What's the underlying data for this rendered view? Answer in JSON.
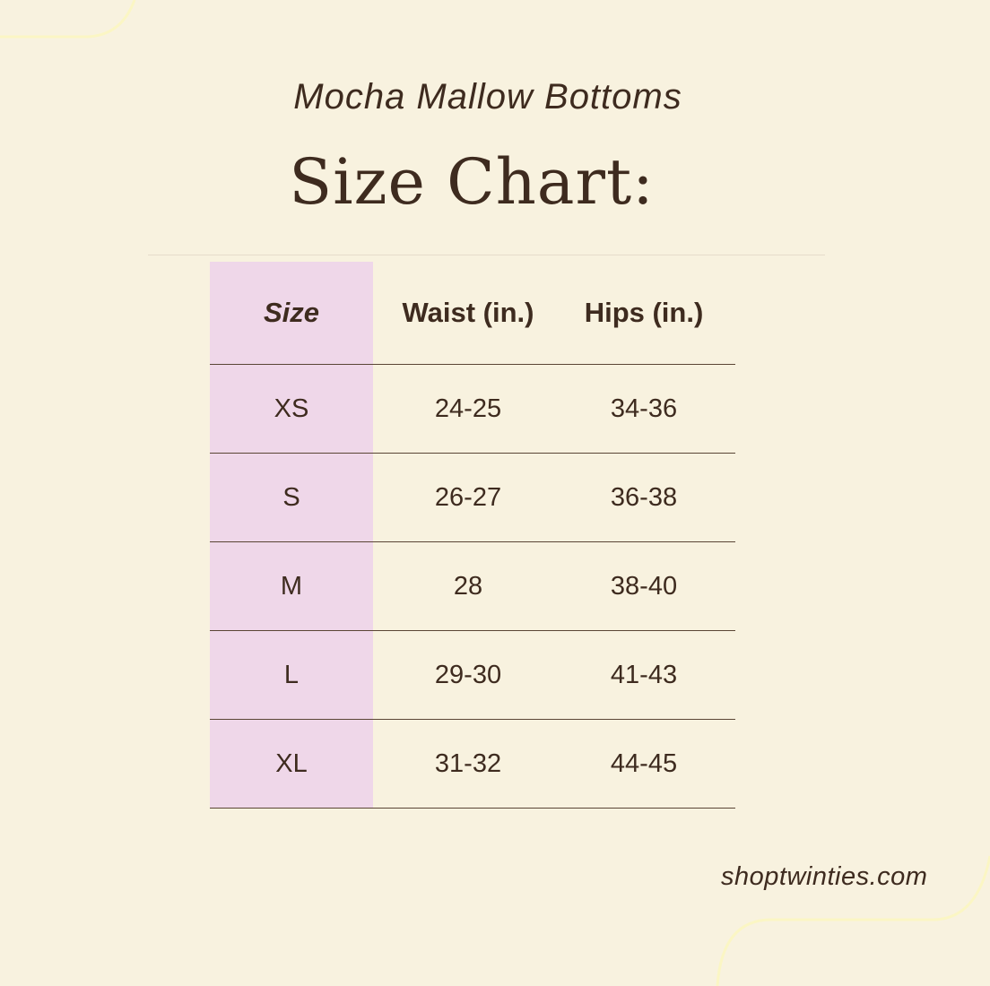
{
  "subtitle": "Mocha Mallow Bottoms",
  "title": "Size Chart:",
  "table": {
    "headers": [
      "Size",
      "Waist (in.)",
      "Hips (in.)"
    ],
    "rows": [
      [
        "XS",
        "24-25",
        "34-36"
      ],
      [
        "S",
        "26-27",
        "36-38"
      ],
      [
        "M",
        "28",
        "38-40"
      ],
      [
        "L",
        "29-30",
        "41-43"
      ],
      [
        "XL",
        "31-32",
        "44-45"
      ]
    ]
  },
  "footer": "shoptwinties.com",
  "colors": {
    "background": "#f8f2df",
    "text": "#3e2b1f",
    "size_column": "#efd7e9",
    "decor_line": "#fbf6c4"
  }
}
